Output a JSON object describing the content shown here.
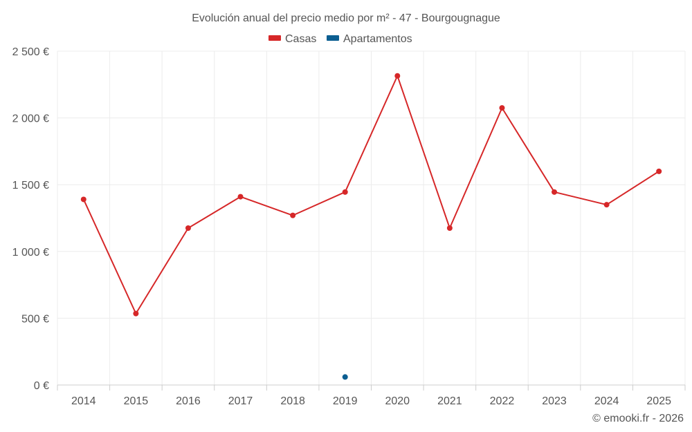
{
  "chart_data": {
    "type": "line",
    "title": "Evolución anual del precio medio por m² - 47 - Bourgougnague",
    "categories": [
      "2014",
      "2015",
      "2016",
      "2017",
      "2018",
      "2019",
      "2020",
      "2021",
      "2022",
      "2023",
      "2024",
      "2025"
    ],
    "series": [
      {
        "name": "Casas",
        "color": "#d62728",
        "values": [
          1390,
          535,
          1175,
          1410,
          1270,
          1445,
          2315,
          1175,
          2075,
          1445,
          1350,
          1600
        ]
      },
      {
        "name": "Apartamentos",
        "color": "#0b5e91",
        "values": [
          null,
          null,
          null,
          null,
          null,
          60,
          null,
          null,
          null,
          null,
          null,
          null
        ]
      }
    ],
    "ylim": [
      0,
      2500
    ],
    "yticks": [
      0,
      500,
      1000,
      1500,
      2000,
      2500
    ],
    "ytick_labels": [
      "0 €",
      "500 €",
      "1 000 €",
      "1 500 €",
      "2 000 €",
      "2 500 €"
    ],
    "xlabel": "",
    "ylabel": "",
    "grid": true,
    "legend_position": "top-center"
  },
  "credit": "© emooki.fr - 2026"
}
